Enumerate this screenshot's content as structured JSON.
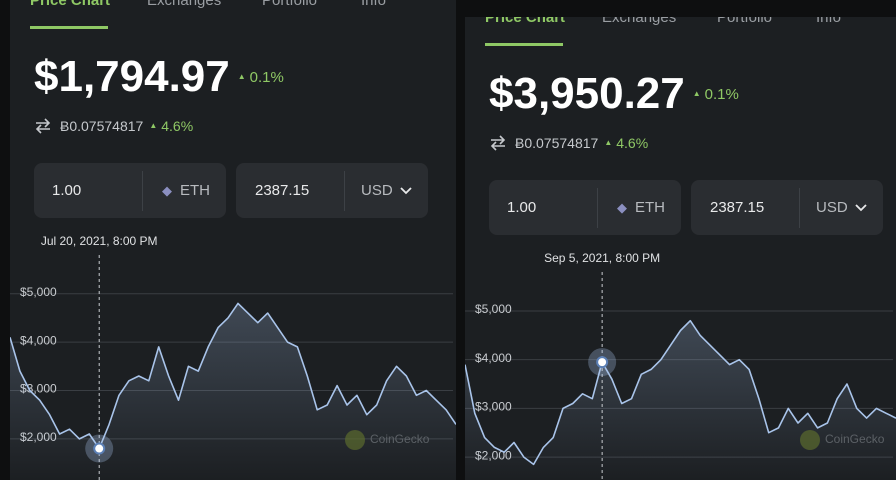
{
  "panels": [
    {
      "tabs": [
        "Price Chart",
        "Exchanges",
        "Portfolio",
        "Info"
      ],
      "price": "$1,794.97",
      "change": "0.1%",
      "btc_price": "Ƀ0.07574817",
      "btc_change": "4.6%",
      "amount": "1.00",
      "coin": "ETH",
      "fiat_amount": "2387.15",
      "fiat": "USD",
      "tooltip": "Jul 20, 2021, 8:00 PM",
      "watermark": "CoinGecko",
      "chart": {
        "type": "line",
        "color": "#a9c4ea",
        "ylim": [
          1150,
          5800
        ],
        "yticks": [
          {
            "value": 2000,
            "label": "$2,000"
          },
          {
            "value": 3000,
            "label": "$3,000"
          },
          {
            "value": 4000,
            "label": "$4,000"
          },
          {
            "value": 5000,
            "label": "$5,000"
          }
        ],
        "values": [
          4100,
          3400,
          3000,
          2800,
          2500,
          2100,
          2200,
          2000,
          2100,
          1800,
          2300,
          2900,
          3200,
          3300,
          3200,
          3900,
          3300,
          2800,
          3500,
          3400,
          3900,
          4300,
          4500,
          4800,
          4600,
          4400,
          4600,
          4300,
          4000,
          3900,
          3300,
          2600,
          2700,
          3100,
          2700,
          2900,
          2500,
          2700,
          3200,
          3500,
          3300,
          2900,
          3000,
          2800,
          2600,
          2300
        ]
      }
    },
    {
      "tabs": [
        "Price Chart",
        "Exchanges",
        "Portfolio",
        "Info"
      ],
      "price": "$3,950.27",
      "change": "0.1%",
      "btc_price": "Ƀ0.07574817",
      "btc_change": "4.6%",
      "amount": "1.00",
      "coin": "ETH",
      "fiat_amount": "2387.15",
      "fiat": "USD",
      "tooltip": "Sep 5, 2021, 8:00 PM",
      "watermark": "CoinGecko",
      "chart": {
        "type": "line",
        "color": "#a9c4ea",
        "ylim": [
          1530,
          5800
        ],
        "yticks": [
          {
            "value": 2000,
            "label": "$2,000"
          },
          {
            "value": 3000,
            "label": "$3,000"
          },
          {
            "value": 4000,
            "label": "$4,000"
          },
          {
            "value": 5000,
            "label": "$5,000"
          }
        ],
        "values": [
          3900,
          2900,
          2400,
          2200,
          2100,
          2300,
          2000,
          1850,
          2200,
          2400,
          3000,
          3100,
          3300,
          3200,
          3950,
          3600,
          3100,
          3200,
          3700,
          3800,
          4000,
          4300,
          4600,
          4800,
          4500,
          4300,
          4100,
          3900,
          4000,
          3800,
          3200,
          2500,
          2600,
          3000,
          2700,
          2900,
          2600,
          2700,
          3200,
          3500,
          3000,
          2800,
          3000,
          2900,
          2800
        ]
      }
    }
  ]
}
